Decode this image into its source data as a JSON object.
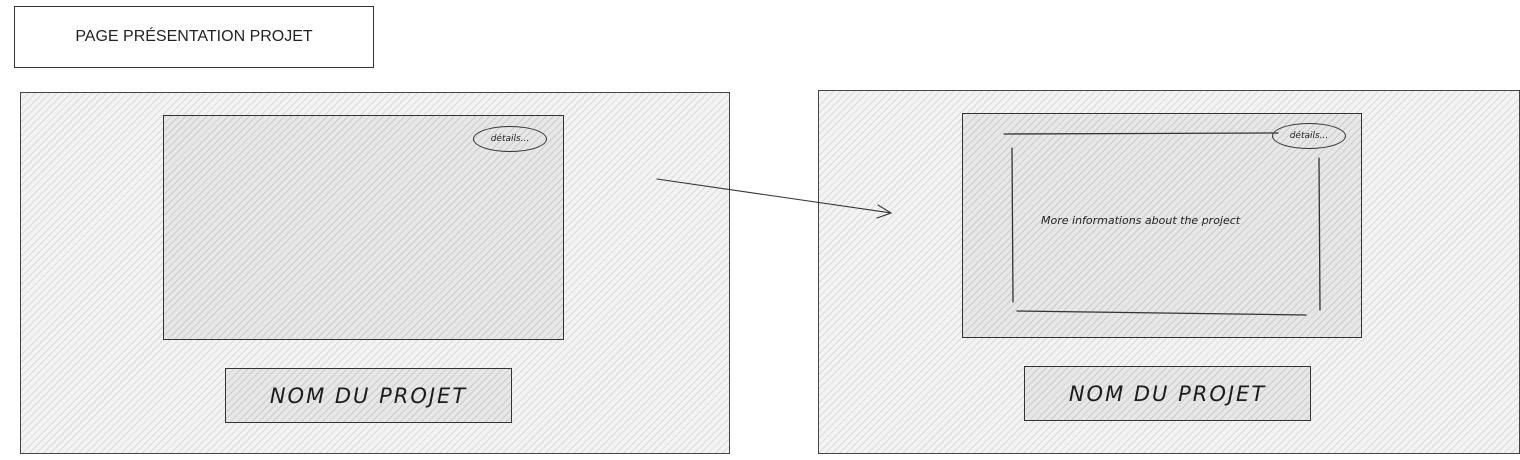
{
  "page_title": "PAGE PRÉSENTATION PROJET",
  "left_panel": {
    "details_label": "détails...",
    "project_name": "NOM DU PROJET"
  },
  "right_panel": {
    "details_label": "détails...",
    "info_text": "More informations about the project",
    "project_name": "NOM DU PROJET"
  },
  "colors": {
    "stroke": "#333333",
    "panel_fill": "#f3f3f3",
    "box_fill": "#e7e7e7"
  }
}
